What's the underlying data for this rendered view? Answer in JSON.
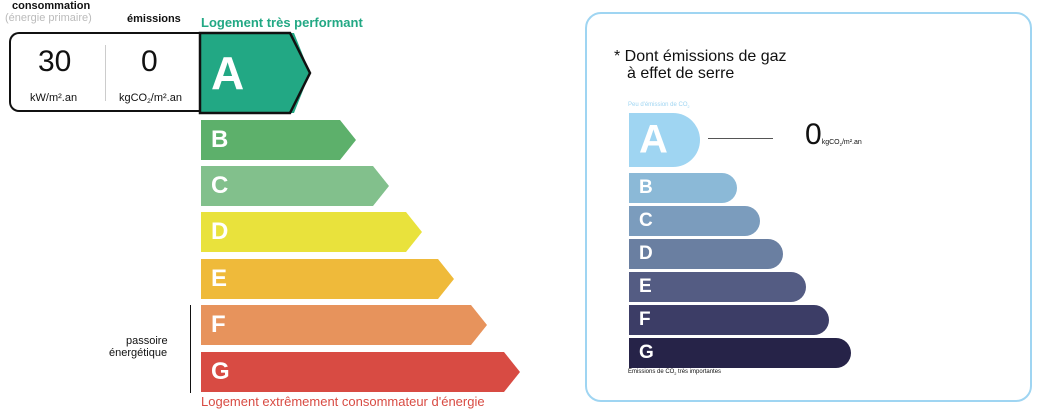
{
  "dpe": {
    "header_consumption": "consommation",
    "header_consumption_sub": "(énergie primaire)",
    "header_emissions": "émissions",
    "top_label": "Logement très performant",
    "bottom_label": "Logement extrêmement consommateur d'énergie",
    "passoire_label_1": "passoire",
    "passoire_label_2": "énergétique",
    "consumption_value": "30",
    "consumption_unit": "kW/m².an",
    "emissions_value": "0",
    "emissions_unit_pre": "kgCO",
    "emissions_unit_sub": "2",
    "emissions_unit_post": "/m².an",
    "current_class": "A",
    "classes": [
      {
        "letter": "A",
        "color": "#22a884"
      },
      {
        "letter": "B",
        "color": "#5db06b"
      },
      {
        "letter": "C",
        "color": "#82c08c"
      },
      {
        "letter": "D",
        "color": "#e9e23c"
      },
      {
        "letter": "E",
        "color": "#efba3a"
      },
      {
        "letter": "F",
        "color": "#e7935c"
      },
      {
        "letter": "G",
        "color": "#d84b43"
      }
    ],
    "top_color": "#22a884",
    "bottom_color": "#d84b43"
  },
  "ges": {
    "title_1": "* Dont émissions de gaz",
    "title_2": "à effet de serre",
    "top_label": "Peu d'émission de CO",
    "top_label_sub": "2",
    "bottom_label_pre": "Émissions de CO",
    "bottom_label_sub": "2",
    "bottom_label_post": " très importantes",
    "value": "0",
    "unit_pre": "kgCO",
    "unit_sub": "2",
    "unit_post": "/m².an",
    "current_class": "A",
    "border_color": "#9fd5f2",
    "classes": [
      {
        "letter": "A",
        "color": "#9fd5f2"
      },
      {
        "letter": "B",
        "color": "#8bb9d7"
      },
      {
        "letter": "C",
        "color": "#7b9cbd"
      },
      {
        "letter": "D",
        "color": "#6a7fa1"
      },
      {
        "letter": "E",
        "color": "#545c83"
      },
      {
        "letter": "F",
        "color": "#3c3d66"
      },
      {
        "letter": "G",
        "color": "#262348"
      }
    ]
  }
}
